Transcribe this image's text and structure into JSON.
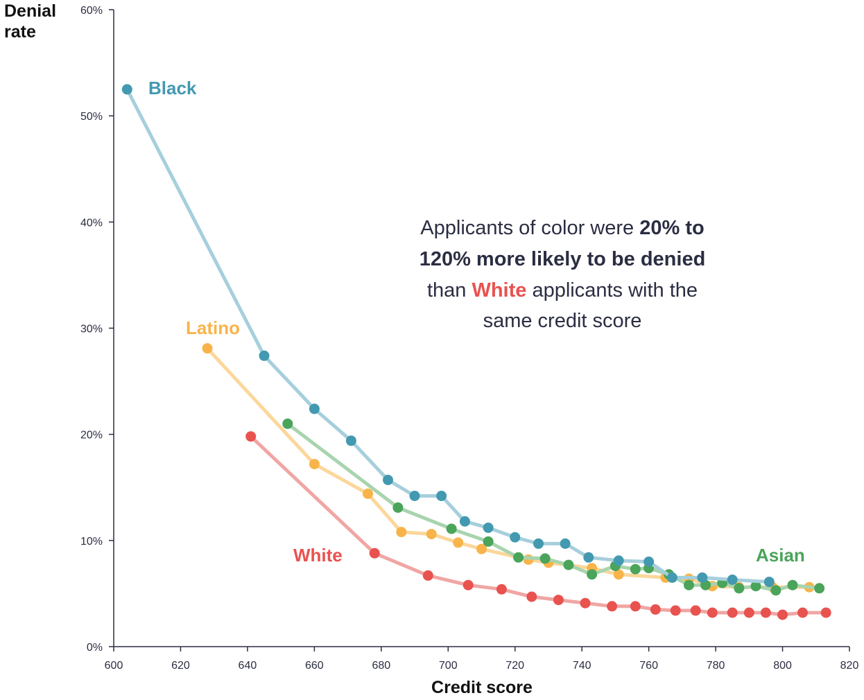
{
  "chart_data": {
    "type": "line",
    "xlabel": "Credit score",
    "ylabel": [
      "Denial",
      "rate"
    ],
    "xlim": [
      600,
      820
    ],
    "ylim": [
      0,
      60
    ],
    "x_ticks": [
      600,
      620,
      640,
      660,
      680,
      700,
      720,
      740,
      760,
      780,
      800,
      820
    ],
    "x_tick_labels": [
      "600",
      "620",
      "640",
      "660",
      "680",
      "700",
      "720",
      "740",
      "760",
      "780",
      "800",
      "820"
    ],
    "y_ticks": [
      0,
      10,
      20,
      30,
      40,
      50,
      60
    ],
    "y_tick_labels": [
      "0%",
      "10%",
      "20%",
      "30%",
      "40%",
      "50%",
      "60%"
    ],
    "grid": false,
    "series": [
      {
        "name": "White",
        "color": "#e8524f",
        "line_color": "#f0a6a4",
        "points": [
          [
            641,
            19.8
          ],
          [
            678,
            8.8
          ],
          [
            694,
            6.7
          ],
          [
            706,
            5.8
          ],
          [
            716,
            5.4
          ],
          [
            725,
            4.7
          ],
          [
            733,
            4.4
          ],
          [
            741,
            4.1
          ],
          [
            749,
            3.8
          ],
          [
            756,
            3.8
          ],
          [
            762,
            3.5
          ],
          [
            768,
            3.4
          ],
          [
            774,
            3.4
          ],
          [
            779,
            3.2
          ],
          [
            785,
            3.2
          ],
          [
            790,
            3.2
          ],
          [
            795,
            3.2
          ],
          [
            800,
            3.0
          ],
          [
            806,
            3.2
          ],
          [
            813,
            3.2
          ]
        ]
      },
      {
        "name": "Latino",
        "color": "#f8b44a",
        "line_color": "#fbd79b",
        "points": [
          [
            628,
            28.1
          ],
          [
            660,
            17.2
          ],
          [
            676,
            14.4
          ],
          [
            686,
            10.8
          ],
          [
            695,
            10.6
          ],
          [
            703,
            9.8
          ],
          [
            710,
            9.2
          ],
          [
            724,
            8.2
          ],
          [
            730,
            7.9
          ],
          [
            743,
            7.4
          ],
          [
            751,
            6.8
          ],
          [
            765,
            6.5
          ],
          [
            772,
            6.4
          ],
          [
            779,
            5.7
          ],
          [
            787,
            5.6
          ],
          [
            797,
            5.6
          ],
          [
            808,
            5.6
          ]
        ]
      },
      {
        "name": "Asian",
        "color": "#4aa45a",
        "line_color": "#a8d4ae",
        "points": [
          [
            652,
            21.0
          ],
          [
            685,
            13.1
          ],
          [
            701,
            11.1
          ],
          [
            712,
            9.9
          ],
          [
            721,
            8.4
          ],
          [
            729,
            8.3
          ],
          [
            736,
            7.7
          ],
          [
            743,
            6.8
          ],
          [
            750,
            7.6
          ],
          [
            756,
            7.3
          ],
          [
            760,
            7.4
          ],
          [
            766,
            6.8
          ],
          [
            772,
            5.8
          ],
          [
            777,
            5.8
          ],
          [
            782,
            6.0
          ],
          [
            787,
            5.5
          ],
          [
            792,
            5.7
          ],
          [
            798,
            5.3
          ],
          [
            803,
            5.8
          ],
          [
            811,
            5.5
          ]
        ]
      },
      {
        "name": "Black",
        "color": "#4399b0",
        "line_color": "#a6cfdc",
        "points": [
          [
            604,
            52.5
          ],
          [
            645,
            27.4
          ],
          [
            660,
            22.4
          ],
          [
            671,
            19.4
          ],
          [
            682,
            15.7
          ],
          [
            690,
            14.2
          ],
          [
            698,
            14.2
          ],
          [
            705,
            11.8
          ],
          [
            712,
            11.2
          ],
          [
            720,
            10.3
          ],
          [
            727,
            9.7
          ],
          [
            735,
            9.7
          ],
          [
            742,
            8.4
          ],
          [
            751,
            8.1
          ],
          [
            760,
            8.0
          ],
          [
            767,
            6.5
          ],
          [
            776,
            6.5
          ],
          [
            785,
            6.3
          ],
          [
            796,
            6.1
          ]
        ]
      }
    ],
    "series_labels": [
      {
        "name": "Black",
        "text": "Black",
        "color": "#4399b0"
      },
      {
        "name": "Latino",
        "text": "Latino",
        "color": "#f8b44a"
      },
      {
        "name": "White",
        "text": "White",
        "color": "#e8524f"
      },
      {
        "name": "Asian",
        "text": "Asian",
        "color": "#4aa45a"
      }
    ],
    "annotation": {
      "line1_normal": "Applicants of color were ",
      "line1_bold": "20% to",
      "line2_bold": "120% more likely to be denied",
      "line3_pre": "than ",
      "line3_highlight": "White",
      "line3_post": " applicants with the",
      "line4": "same credit score",
      "highlight_color": "#e8524f"
    }
  }
}
